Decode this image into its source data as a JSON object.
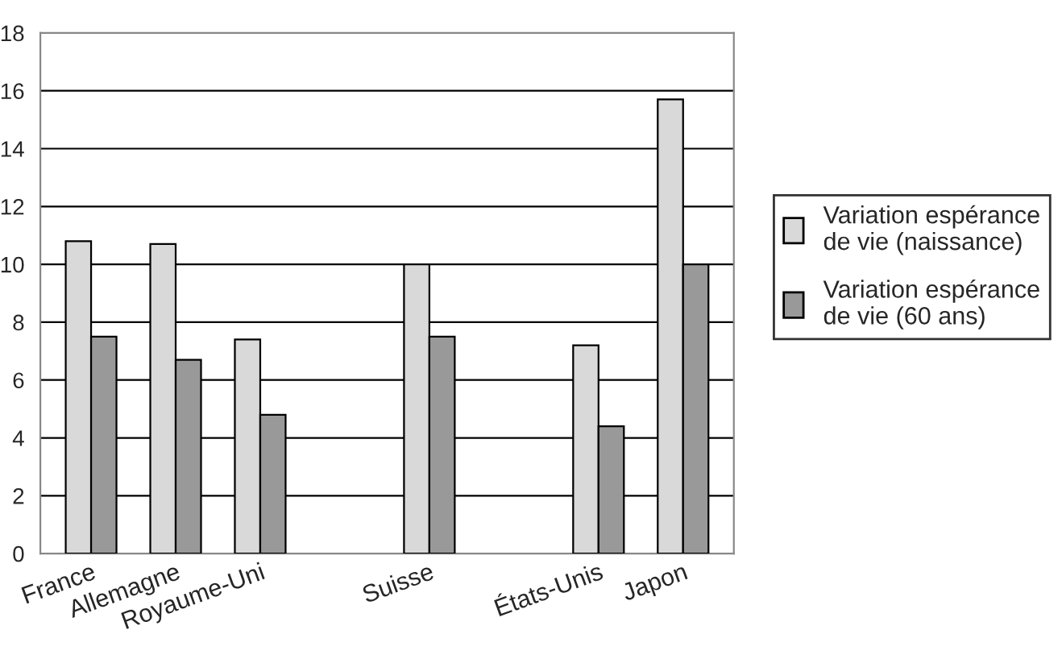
{
  "chart_data": {
    "type": "bar",
    "categories": [
      "France",
      "Allemagne",
      "Royaume-Uni",
      null,
      "Suisse",
      null,
      "États-Unis",
      "Japon"
    ],
    "series": [
      {
        "name": "Variation espérance de vie (naissance)",
        "color": "#d9d9d9",
        "values": [
          10.8,
          10.7,
          7.4,
          null,
          10.0,
          null,
          7.2,
          15.7
        ]
      },
      {
        "name": "Variation espérance de vie (60 ans)",
        "color": "#999999",
        "values": [
          7.5,
          6.7,
          4.8,
          null,
          7.5,
          null,
          4.4,
          10.0
        ]
      }
    ],
    "ylim": [
      0,
      18
    ],
    "yticks": [
      0,
      2,
      4,
      6,
      8,
      10,
      12,
      14,
      16,
      18
    ],
    "grid": "y",
    "legend": "right"
  }
}
